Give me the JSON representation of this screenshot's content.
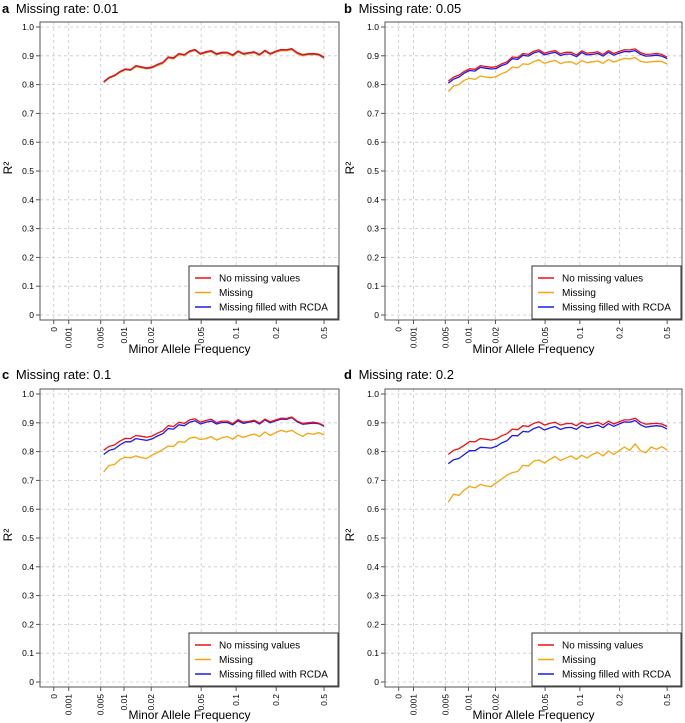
{
  "colors": {
    "no_missing": "#ee1111",
    "missing": "#f5a40a",
    "rcda": "#1a1aee",
    "grid": "#c8c8c8",
    "axis": "#555555"
  },
  "chart_data": [
    {
      "type": "line",
      "panel_letter": "a",
      "title": "Missing rate: 0.01",
      "xlabel": "Minor Allele Frequency",
      "ylabel": "R²",
      "x_scale": "log",
      "x_ticks": [
        0,
        0.001,
        0.005,
        0.01,
        0.02,
        0.05,
        0.1,
        0.2,
        0.5
      ],
      "x_tick_labels": [
        "0",
        "0.001",
        "0.005",
        "0.01",
        "0.02",
        "0.05",
        "0.1",
        "0.2",
        "0.5"
      ],
      "y_ticks": [
        0,
        0.1,
        0.2,
        0.3,
        0.4,
        0.5,
        0.6,
        0.7,
        0.8,
        0.9,
        1.0
      ],
      "y_tick_labels": [
        "0",
        "0.1",
        "0.2",
        "0.3",
        "0.4",
        "0.5",
        "0.6",
        "0.7",
        "0.8",
        "0.9",
        "1.0"
      ],
      "ylim": [
        0,
        1.0
      ],
      "grid": true,
      "legend_position": "bottom-right",
      "legend": [
        "No missing values",
        "Missing",
        "Missing filled with RCDA"
      ],
      "series": [
        {
          "name": "No missing values",
          "color_key": "no_missing",
          "values": [
            0.81,
            0.825,
            0.832,
            0.845,
            0.854,
            0.852,
            0.866,
            0.862,
            0.858,
            0.861,
            0.87,
            0.877,
            0.896,
            0.893,
            0.908,
            0.904,
            0.917,
            0.922,
            0.908,
            0.914,
            0.918,
            0.907,
            0.912,
            0.912,
            0.903,
            0.917,
            0.908,
            0.911,
            0.914,
            0.905,
            0.919,
            0.908,
            0.916,
            0.922,
            0.921,
            0.925,
            0.911,
            0.904,
            0.907,
            0.908,
            0.906,
            0.895
          ]
        },
        {
          "name": "Missing",
          "color_key": "missing",
          "values": [
            0.807,
            0.822,
            0.829,
            0.842,
            0.851,
            0.849,
            0.862,
            0.858,
            0.854,
            0.857,
            0.866,
            0.873,
            0.892,
            0.889,
            0.904,
            0.9,
            0.913,
            0.918,
            0.904,
            0.91,
            0.914,
            0.903,
            0.908,
            0.908,
            0.899,
            0.913,
            0.904,
            0.907,
            0.91,
            0.901,
            0.915,
            0.904,
            0.912,
            0.918,
            0.917,
            0.921,
            0.907,
            0.9,
            0.903,
            0.904,
            0.902,
            0.891
          ]
        },
        {
          "name": "Missing filled with RCDA",
          "color_key": "rcda",
          "values": [
            0.809,
            0.824,
            0.831,
            0.844,
            0.853,
            0.851,
            0.865,
            0.861,
            0.857,
            0.86,
            0.869,
            0.876,
            0.895,
            0.892,
            0.907,
            0.903,
            0.916,
            0.921,
            0.907,
            0.913,
            0.917,
            0.906,
            0.911,
            0.911,
            0.902,
            0.916,
            0.907,
            0.91,
            0.913,
            0.904,
            0.918,
            0.907,
            0.915,
            0.921,
            0.92,
            0.924,
            0.91,
            0.903,
            0.906,
            0.907,
            0.905,
            0.894
          ]
        }
      ]
    },
    {
      "type": "line",
      "panel_letter": "b",
      "title": "Missing rate: 0.05",
      "xlabel": "Minor Allele Frequency",
      "ylabel": "R²",
      "x_scale": "log",
      "x_ticks": [
        0,
        0.001,
        0.005,
        0.01,
        0.02,
        0.05,
        0.1,
        0.2,
        0.5
      ],
      "x_tick_labels": [
        "0",
        "0.001",
        "0.005",
        "0.01",
        "0.02",
        "0.05",
        "0.1",
        "0.2",
        "0.5"
      ],
      "y_ticks": [
        0,
        0.1,
        0.2,
        0.3,
        0.4,
        0.5,
        0.6,
        0.7,
        0.8,
        0.9,
        1.0
      ],
      "y_tick_labels": [
        "0",
        "0.1",
        "0.2",
        "0.3",
        "0.4",
        "0.5",
        "0.6",
        "0.7",
        "0.8",
        "0.9",
        "1.0"
      ],
      "ylim": [
        0,
        1.0
      ],
      "grid": true,
      "legend_position": "bottom-right",
      "legend": [
        "No missing values",
        "Missing",
        "Missing filled with RCDA"
      ],
      "series": [
        {
          "name": "No missing values",
          "color_key": "no_missing",
          "values": [
            0.812,
            0.826,
            0.833,
            0.846,
            0.855,
            0.853,
            0.866,
            0.863,
            0.86,
            0.862,
            0.872,
            0.879,
            0.896,
            0.894,
            0.908,
            0.905,
            0.916,
            0.921,
            0.909,
            0.914,
            0.918,
            0.907,
            0.912,
            0.912,
            0.903,
            0.917,
            0.909,
            0.911,
            0.914,
            0.905,
            0.918,
            0.908,
            0.915,
            0.921,
            0.92,
            0.924,
            0.911,
            0.905,
            0.906,
            0.908,
            0.905,
            0.895
          ]
        },
        {
          "name": "Missing",
          "color_key": "missing",
          "values": [
            0.776,
            0.795,
            0.8,
            0.815,
            0.822,
            0.818,
            0.83,
            0.826,
            0.824,
            0.828,
            0.838,
            0.845,
            0.861,
            0.858,
            0.872,
            0.87,
            0.88,
            0.886,
            0.874,
            0.88,
            0.884,
            0.873,
            0.878,
            0.879,
            0.87,
            0.883,
            0.876,
            0.879,
            0.882,
            0.874,
            0.887,
            0.878,
            0.885,
            0.891,
            0.889,
            0.894,
            0.881,
            0.877,
            0.879,
            0.881,
            0.88,
            0.872
          ]
        },
        {
          "name": "Missing filled with RCDA",
          "color_key": "rcda",
          "values": [
            0.805,
            0.819,
            0.826,
            0.84,
            0.849,
            0.847,
            0.86,
            0.857,
            0.854,
            0.856,
            0.866,
            0.873,
            0.89,
            0.888,
            0.902,
            0.899,
            0.91,
            0.915,
            0.903,
            0.908,
            0.912,
            0.901,
            0.906,
            0.906,
            0.897,
            0.911,
            0.903,
            0.905,
            0.908,
            0.899,
            0.912,
            0.902,
            0.909,
            0.915,
            0.914,
            0.918,
            0.905,
            0.899,
            0.9,
            0.902,
            0.899,
            0.89
          ]
        }
      ]
    },
    {
      "type": "line",
      "panel_letter": "c",
      "title": "Missing rate: 0.1",
      "xlabel": "Minor Allele Frequency",
      "ylabel": "R²",
      "x_scale": "log",
      "x_ticks": [
        0,
        0.001,
        0.005,
        0.01,
        0.02,
        0.05,
        0.1,
        0.2,
        0.5
      ],
      "x_tick_labels": [
        "0",
        "0.001",
        "0.005",
        "0.01",
        "0.02",
        "0.05",
        "0.1",
        "0.2",
        "0.5"
      ],
      "y_ticks": [
        0,
        0.1,
        0.2,
        0.3,
        0.4,
        0.5,
        0.6,
        0.7,
        0.8,
        0.9,
        1.0
      ],
      "y_tick_labels": [
        "0",
        "0.1",
        "0.2",
        "0.3",
        "0.4",
        "0.5",
        "0.6",
        "0.7",
        "0.8",
        "0.9",
        "1.0"
      ],
      "ylim": [
        0,
        1.0
      ],
      "grid": true,
      "legend_position": "bottom-right",
      "legend": [
        "No missing values",
        "Missing",
        "Missing filled with RCDA"
      ],
      "series": [
        {
          "name": "No missing values",
          "color_key": "no_missing",
          "values": [
            0.805,
            0.818,
            0.823,
            0.836,
            0.846,
            0.845,
            0.856,
            0.853,
            0.85,
            0.854,
            0.864,
            0.872,
            0.89,
            0.887,
            0.902,
            0.898,
            0.91,
            0.914,
            0.902,
            0.908,
            0.912,
            0.901,
            0.906,
            0.906,
            0.897,
            0.911,
            0.902,
            0.905,
            0.909,
            0.899,
            0.913,
            0.903,
            0.91,
            0.916,
            0.915,
            0.92,
            0.906,
            0.898,
            0.9,
            0.902,
            0.899,
            0.89
          ]
        },
        {
          "name": "Missing",
          "color_key": "missing",
          "values": [
            0.73,
            0.752,
            0.755,
            0.772,
            0.781,
            0.778,
            0.785,
            0.779,
            0.776,
            0.788,
            0.797,
            0.807,
            0.819,
            0.818,
            0.835,
            0.832,
            0.847,
            0.85,
            0.842,
            0.845,
            0.852,
            0.84,
            0.848,
            0.852,
            0.843,
            0.857,
            0.849,
            0.856,
            0.861,
            0.852,
            0.868,
            0.856,
            0.866,
            0.874,
            0.868,
            0.874,
            0.862,
            0.853,
            0.864,
            0.86,
            0.866,
            0.858
          ]
        },
        {
          "name": "Missing filled with RCDA",
          "color_key": "rcda",
          "values": [
            0.79,
            0.804,
            0.809,
            0.823,
            0.834,
            0.834,
            0.845,
            0.842,
            0.839,
            0.844,
            0.854,
            0.862,
            0.88,
            0.878,
            0.893,
            0.89,
            0.902,
            0.907,
            0.896,
            0.902,
            0.906,
            0.896,
            0.901,
            0.901,
            0.893,
            0.907,
            0.898,
            0.902,
            0.906,
            0.896,
            0.91,
            0.9,
            0.907,
            0.913,
            0.912,
            0.918,
            0.903,
            0.895,
            0.897,
            0.899,
            0.897,
            0.888
          ]
        }
      ]
    },
    {
      "type": "line",
      "panel_letter": "d",
      "title": "Missing rate: 0.2",
      "xlabel": "Minor Allele Frequency",
      "ylabel": "R²",
      "x_scale": "log",
      "x_ticks": [
        0,
        0.001,
        0.005,
        0.01,
        0.02,
        0.05,
        0.1,
        0.2,
        0.5
      ],
      "x_tick_labels": [
        "0",
        "0.001",
        "0.005",
        "0.01",
        "0.02",
        "0.05",
        "0.1",
        "0.2",
        "0.5"
      ],
      "y_ticks": [
        0,
        0.1,
        0.2,
        0.3,
        0.4,
        0.5,
        0.6,
        0.7,
        0.8,
        0.9,
        1.0
      ],
      "y_tick_labels": [
        "0",
        "0.1",
        "0.2",
        "0.3",
        "0.4",
        "0.5",
        "0.6",
        "0.7",
        "0.8",
        "0.9",
        "1.0"
      ],
      "ylim": [
        0,
        1.0
      ],
      "grid": true,
      "legend_position": "bottom-right",
      "legend": [
        "No missing values",
        "Missing",
        "Missing filled with RCDA"
      ],
      "series": [
        {
          "name": "No missing values",
          "color_key": "no_missing",
          "values": [
            0.79,
            0.805,
            0.81,
            0.822,
            0.835,
            0.834,
            0.845,
            0.843,
            0.84,
            0.844,
            0.855,
            0.862,
            0.878,
            0.876,
            0.89,
            0.887,
            0.898,
            0.903,
            0.892,
            0.898,
            0.902,
            0.892,
            0.897,
            0.898,
            0.89,
            0.902,
            0.895,
            0.898,
            0.902,
            0.893,
            0.906,
            0.896,
            0.903,
            0.91,
            0.91,
            0.916,
            0.902,
            0.895,
            0.897,
            0.898,
            0.896,
            0.887
          ]
        },
        {
          "name": "Missing",
          "color_key": "missing",
          "values": [
            0.625,
            0.652,
            0.648,
            0.667,
            0.679,
            0.674,
            0.686,
            0.681,
            0.678,
            0.692,
            0.705,
            0.718,
            0.727,
            0.731,
            0.752,
            0.75,
            0.767,
            0.771,
            0.76,
            0.773,
            0.783,
            0.769,
            0.777,
            0.785,
            0.773,
            0.787,
            0.778,
            0.79,
            0.797,
            0.785,
            0.802,
            0.79,
            0.803,
            0.816,
            0.804,
            0.827,
            0.803,
            0.796,
            0.816,
            0.808,
            0.817,
            0.806
          ]
        },
        {
          "name": "Missing filled with RCDA",
          "color_key": "rcda",
          "values": [
            0.758,
            0.772,
            0.776,
            0.79,
            0.803,
            0.803,
            0.815,
            0.814,
            0.812,
            0.818,
            0.83,
            0.838,
            0.856,
            0.855,
            0.87,
            0.868,
            0.88,
            0.886,
            0.875,
            0.882,
            0.887,
            0.877,
            0.883,
            0.884,
            0.877,
            0.891,
            0.883,
            0.887,
            0.892,
            0.883,
            0.897,
            0.888,
            0.896,
            0.903,
            0.902,
            0.908,
            0.893,
            0.885,
            0.888,
            0.89,
            0.888,
            0.878
          ]
        }
      ]
    }
  ]
}
